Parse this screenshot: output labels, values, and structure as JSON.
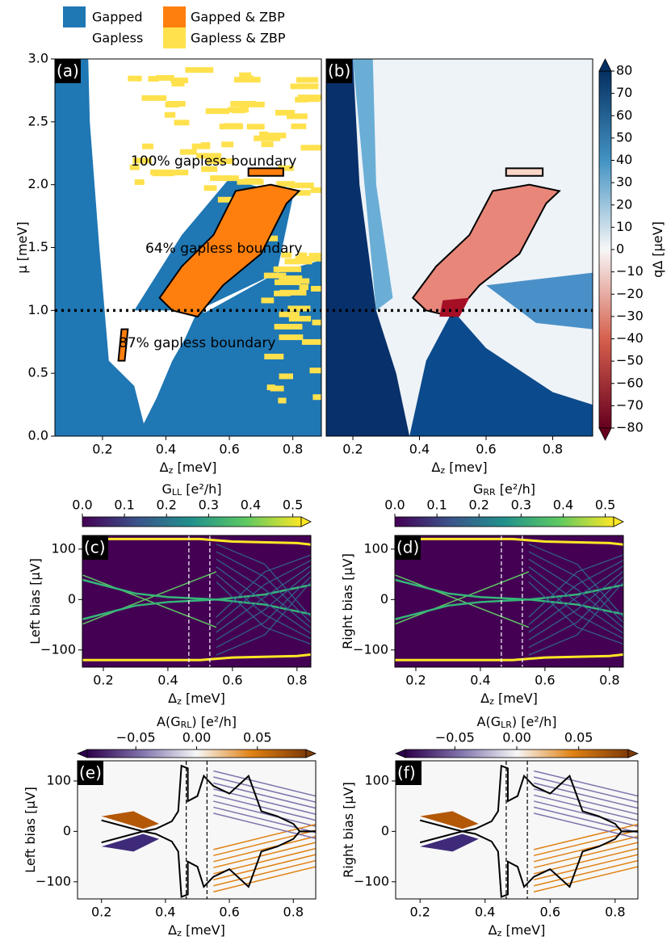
{
  "chart_data": [
    {
      "type": "heatmap",
      "panel": "(a)",
      "legend": [
        {
          "label": "Gapped",
          "color": "#1f77b4"
        },
        {
          "label": "Gapless",
          "color": "#ffffff"
        },
        {
          "label": "Gapped & ZBP",
          "color": "#ff7f0e"
        },
        {
          "label": "Gapless & ZBP",
          "color": "#ffe14d"
        }
      ],
      "xlabel": [
        "Δ",
        "z",
        " [meV]"
      ],
      "ylabel": [
        "μ [meV]"
      ],
      "xlim": [
        0.05,
        0.89
      ],
      "ylim": [
        0,
        3
      ],
      "xticks": [
        0.2,
        0.4,
        0.6,
        0.8
      ],
      "yticks": [
        {
          "value": 0,
          "label": "0.0"
        },
        0.5,
        {
          "value": 1,
          "label": "1.0"
        },
        1.5,
        {
          "value": 2,
          "label": "2.0"
        },
        2.5,
        {
          "value": 3,
          "label": "3.0"
        }
      ],
      "hline": 1,
      "annotations": [
        "100% gapless boundary",
        "64% gapless boundary",
        "87% gapless boundary"
      ]
    },
    {
      "type": "heatmap",
      "panel": "(b)",
      "xlabel": [
        "Δ",
        "z",
        " [mev]"
      ],
      "xlim": [
        0.12,
        0.92
      ],
      "ylim": [
        0,
        3
      ],
      "xticks": [
        0.2,
        0.4,
        0.6,
        0.8
      ],
      "hline": 1,
      "colorbar": {
        "label": [
          "qΔ [μeV]"
        ],
        "lim": [
          -80,
          80
        ],
        "ticks": [
          80,
          70,
          60,
          50,
          40,
          30,
          20,
          10,
          0,
          {
            "value": -10,
            "label": "−10"
          },
          {
            "value": -20,
            "label": "−20"
          },
          {
            "value": -30,
            "label": "−30"
          },
          {
            "value": -40,
            "label": "−40"
          },
          {
            "value": -50,
            "label": "−50"
          },
          {
            "value": -60,
            "label": "−60"
          },
          {
            "value": -70,
            "label": "−70"
          },
          {
            "value": -80,
            "label": "−80"
          }
        ]
      }
    },
    {
      "type": "heatmap",
      "panel": "(c)",
      "xlabel": [
        "Δ",
        "z",
        " [meV]"
      ],
      "ylabel": [
        "Left bias [μV]"
      ],
      "xlim": [
        0.135,
        0.843
      ],
      "ylim": [
        -134,
        127
      ],
      "xticks": [
        0.2,
        0.4,
        0.6,
        0.8
      ],
      "yticks": [
        {
          "value": -100,
          "label": "−100"
        },
        0,
        100
      ],
      "vlines": [
        0.465,
        0.53
      ],
      "colorbar": {
        "label": [
          "G",
          "LL",
          " [e²/h]"
        ],
        "lim": [
          0,
          0.52
        ],
        "ticks": [
          {
            "value": 0,
            "label": "0.0"
          },
          0.1,
          0.2,
          0.3,
          0.4,
          0.5
        ]
      }
    },
    {
      "type": "heatmap",
      "panel": "(d)",
      "xlabel": [
        "Δ",
        "z",
        " [meV]"
      ],
      "ylabel": [
        "Right bias [μV]"
      ],
      "xlim": [
        0.135,
        0.843
      ],
      "ylim": [
        -134,
        127
      ],
      "xticks": [
        0.2,
        0.4,
        0.6,
        0.8
      ],
      "yticks": [
        {
          "value": -100,
          "label": "−100"
        },
        0,
        100
      ],
      "vlines": [
        0.465,
        0.53
      ],
      "colorbar": {
        "label": [
          "G",
          "RR",
          " [e²/h]"
        ],
        "lim": [
          0,
          0.52
        ],
        "ticks": [
          {
            "value": 0,
            "label": "0.0"
          },
          0.1,
          0.2,
          0.3,
          0.4,
          0.5
        ]
      }
    },
    {
      "type": "heatmap",
      "panel": "(e)",
      "xlabel": [
        "Δ",
        "z",
        " [meV]"
      ],
      "ylabel": [
        "Left bias [μV]"
      ],
      "xlim": [
        0.125,
        0.87
      ],
      "ylim": [
        -134,
        140
      ],
      "xticks": [
        0.2,
        0.4,
        0.6,
        0.8
      ],
      "yticks": [
        {
          "value": -100,
          "label": "−100"
        },
        0,
        100
      ],
      "vlines": [
        0.465,
        0.53
      ],
      "colorbar": {
        "label": [
          "A(G",
          "RL",
          ") [e²/h]"
        ],
        "lim": [
          -0.09,
          0.09
        ],
        "ticks": [
          {
            "value": -0.05,
            "label": "−0.05"
          },
          {
            "value": 0,
            "label": "0.00"
          },
          0.05
        ]
      }
    },
    {
      "type": "heatmap",
      "panel": "(f)",
      "xlabel": [
        "Δ",
        "z",
        " [meV]"
      ],
      "ylabel": [
        "Right bias [μV]"
      ],
      "xlim": [
        0.125,
        0.87
      ],
      "ylim": [
        -134,
        140
      ],
      "xticks": [
        0.2,
        0.4,
        0.6,
        0.8
      ],
      "yticks": [
        {
          "value": -100,
          "label": "−100"
        },
        0,
        100
      ],
      "vlines": [
        0.465,
        0.53
      ],
      "colorbar": {
        "label": [
          "A(G",
          "LR",
          ") [e²/h]"
        ],
        "lim": [
          -0.09,
          0.09
        ],
        "ticks": [
          {
            "value": -0.05,
            "label": "−0.05"
          },
          {
            "value": 0,
            "label": "0.00"
          },
          0.05
        ]
      }
    }
  ]
}
